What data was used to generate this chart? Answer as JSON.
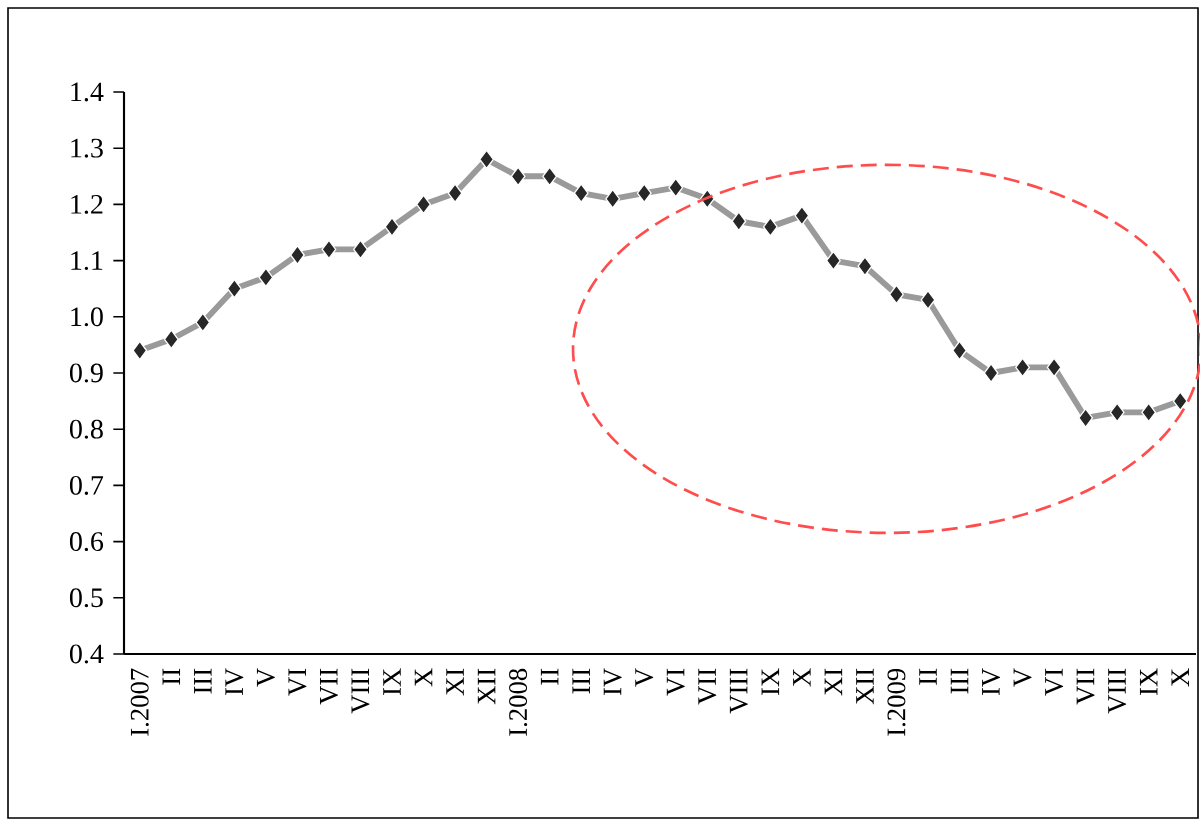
{
  "chart_data": {
    "type": "line",
    "categories": [
      "I.2007",
      "II",
      "III",
      "IV",
      "V",
      "VI",
      "VII",
      "VIII",
      "IX",
      "X",
      "XI",
      "XII",
      "I.2008",
      "II",
      "III",
      "IV",
      "V",
      "VI",
      "VII",
      "VIII",
      "IX",
      "X",
      "XI",
      "XII",
      "I.2009",
      "II",
      "III",
      "IV",
      "V",
      "VI",
      "VII",
      "VIII",
      "IX",
      "X"
    ],
    "series": [
      {
        "color": "#9a9a9a",
        "values": [
          0.94,
          0.96,
          0.99,
          1.05,
          1.07,
          1.11,
          1.12,
          1.12,
          1.16,
          1.2,
          1.22,
          1.28,
          1.25,
          1.25,
          1.22,
          1.21,
          1.22,
          1.23,
          1.21,
          1.17,
          1.16,
          1.18,
          1.1,
          1.09,
          1.04,
          1.03,
          0.94,
          0.9,
          0.91,
          0.91,
          0.82,
          0.83,
          0.83,
          0.85
        ]
      }
    ],
    "ylim": [
      0.4,
      1.4
    ],
    "yticks": [
      0.4,
      0.5,
      0.6,
      0.7,
      0.8,
      0.9,
      {
        "value": 1,
        "label": "1.0"
      },
      1.1,
      1.2,
      1.3,
      1.4
    ],
    "marker": "diamond",
    "line_style": "solid",
    "grid": false
  }
}
